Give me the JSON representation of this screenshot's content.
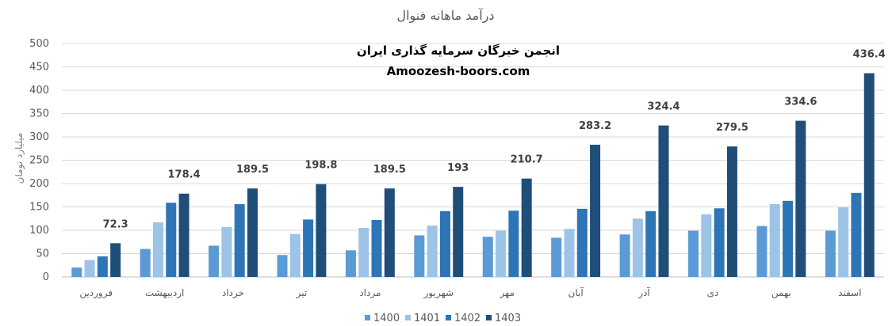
{
  "chart_data": {
    "type": "bar",
    "title": "درآمد ماهانه فنوال",
    "ylabel": "میلیارد تومان",
    "xlabel": "",
    "ylim": [
      0,
      500
    ],
    "y_ticks": [
      0,
      50,
      100,
      150,
      200,
      250,
      300,
      350,
      400,
      450,
      500
    ],
    "grid": true,
    "legend_position": "bottom",
    "categories": [
      "فروردین",
      "اردیبهشت",
      "خرداد",
      "تیر",
      "مرداد",
      "شهریور",
      "مهر",
      "آبان",
      "آذر",
      "دی",
      "بهمن",
      "اسفند"
    ],
    "series": [
      {
        "name": "1400",
        "color": "#5b9bd5",
        "values": [
          20,
          60,
          67,
          47,
          57,
          89,
          86,
          84,
          91,
          99,
          109,
          99
        ]
      },
      {
        "name": "1401",
        "color": "#9dc3e6",
        "values": [
          36,
          117,
          107,
          92,
          105,
          110,
          99,
          103,
          125,
          134,
          156,
          149
        ]
      },
      {
        "name": "1402",
        "color": "#2e75b6",
        "values": [
          44,
          159,
          156,
          123,
          122,
          141,
          142,
          146,
          141,
          147,
          163,
          180
        ]
      },
      {
        "name": "1403",
        "color": "#1f4e79",
        "values": [
          72.3,
          178.4,
          189.5,
          198.8,
          189.5,
          193,
          210.7,
          283.2,
          324.4,
          279.5,
          334.6,
          436.4
        ]
      }
    ],
    "data_labels": [
      "72.3",
      "178.4",
      "189.5",
      "198.8",
      "189.5",
      "193",
      "210.7",
      "283.2",
      "324.4",
      "279.5",
      "334.6",
      "436.4"
    ]
  },
  "watermark": {
    "line1": "انجمن خبرگان سرمایه گذاری ایران",
    "line2": "Amoozesh-boors.com"
  }
}
